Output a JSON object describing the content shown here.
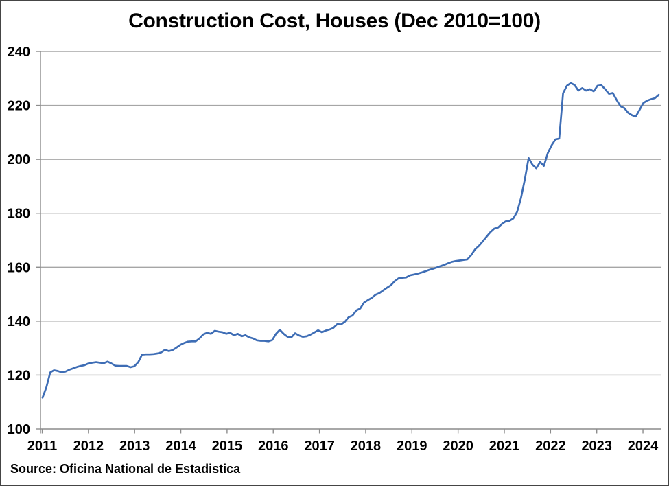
{
  "chart_data": {
    "type": "line",
    "title": "Construction Cost, Houses (Dec 2010=100)",
    "source_note": "Source: Oficina National de Estadistica",
    "grid": "horizontal",
    "legend": "none",
    "colors": {
      "line": "#3E6DB5",
      "gridline": "#A6A6A6",
      "axis": "#8C8C8C",
      "text": "#000000",
      "frame": "#454545"
    },
    "x_axis": {
      "tick_labels": [
        "2011",
        "2012",
        "2013",
        "2014",
        "2015",
        "2016",
        "2017",
        "2018",
        "2019",
        "2020",
        "2021",
        "2022",
        "2023",
        "2024"
      ],
      "frequency": "monthly",
      "start_month": "2011-01",
      "end_month": "2024-06"
    },
    "y_axis": {
      "ticks": [
        240,
        220,
        200,
        180,
        160,
        140,
        120,
        100
      ],
      "min": 100,
      "max": 240
    },
    "series": [
      {
        "name": "Construction Cost, Houses (Dec 2010=100)",
        "values_by_year": {
          "2011": [
            111.6,
            115.5,
            121.0,
            121.8,
            121.5,
            121.0,
            121.3,
            122.0,
            122.5,
            123.0,
            123.4,
            123.7
          ],
          "2012": [
            124.3,
            124.6,
            124.8,
            124.6,
            124.4,
            125.0,
            124.3,
            123.5,
            123.4,
            123.4,
            123.4,
            122.9
          ],
          "2013": [
            123.3,
            124.8,
            127.6,
            127.7,
            127.7,
            127.8,
            128.0,
            128.4,
            129.4,
            128.9,
            129.3,
            130.2
          ],
          "2014": [
            131.2,
            131.9,
            132.4,
            132.5,
            132.5,
            133.6,
            135.1,
            135.7,
            135.3,
            136.4,
            136.1,
            135.9
          ],
          "2015": [
            135.3,
            135.7,
            134.8,
            135.3,
            134.4,
            134.8,
            134.0,
            133.6,
            132.9,
            132.7,
            132.7,
            132.5
          ],
          "2016": [
            133.0,
            135.3,
            136.8,
            135.3,
            134.2,
            134.0,
            135.5,
            134.7,
            134.2,
            134.4,
            135.0,
            135.8
          ],
          "2017": [
            136.6,
            135.9,
            136.5,
            136.9,
            137.5,
            138.9,
            138.8,
            139.8,
            141.5,
            142.1,
            144.0,
            144.7
          ],
          "2018": [
            146.9,
            147.8,
            148.6,
            149.8,
            150.4,
            151.4,
            152.4,
            153.3,
            154.8,
            155.9,
            156.1,
            156.2
          ],
          "2019": [
            157.0,
            157.3,
            157.6,
            158.0,
            158.5,
            159.0,
            159.4,
            159.9,
            160.4,
            160.9,
            161.5,
            162.0
          ],
          "2020": [
            162.3,
            162.5,
            162.7,
            162.9,
            164.5,
            166.6,
            167.9,
            169.6,
            171.3,
            173.0,
            174.3,
            174.7
          ],
          "2021": [
            176.0,
            177.0,
            177.2,
            178.1,
            180.6,
            185.7,
            192.5,
            200.5,
            198.0,
            196.7,
            199.0,
            197.6
          ],
          "2022": [
            202.3,
            205.2,
            207.4,
            207.7,
            224.5,
            227.3,
            228.3,
            227.6,
            225.5,
            226.4,
            225.5,
            226.0
          ],
          "2023": [
            225.2,
            227.3,
            227.5,
            226.0,
            224.3,
            224.6,
            222.0,
            219.7,
            219.0,
            217.3,
            216.4,
            215.9
          ],
          "2024": [
            218.4,
            220.9,
            221.8,
            222.3,
            222.7,
            223.9
          ]
        }
      }
    ]
  }
}
